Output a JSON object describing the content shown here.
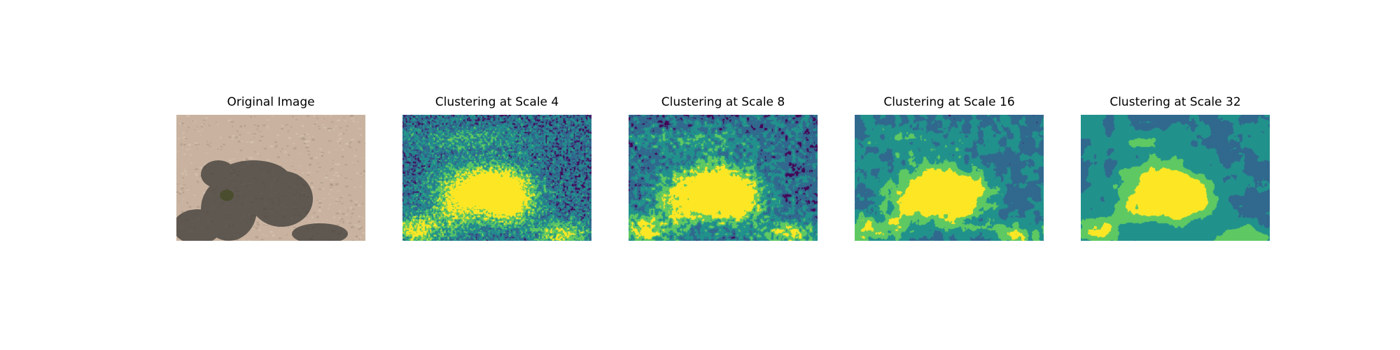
{
  "panels": [
    {
      "title": "Original Image",
      "kind": "photo"
    },
    {
      "title": "Clustering at Scale 4",
      "kind": "cluster",
      "scale": 4
    },
    {
      "title": "Clustering at Scale 8",
      "kind": "cluster",
      "scale": 8
    },
    {
      "title": "Clustering at Scale 16",
      "kind": "cluster",
      "scale": 16
    },
    {
      "title": "Clustering at Scale 32",
      "kind": "cluster",
      "scale": 32
    }
  ],
  "colormap": [
    "#440154",
    "#31688e",
    "#21918c",
    "#5ec962",
    "#fde725"
  ],
  "photo_colors": {
    "ground_light": "#c9b3a0",
    "ground_mid": "#a89482",
    "shadow": "#3c3a36",
    "tree": "#4a4d2e"
  }
}
